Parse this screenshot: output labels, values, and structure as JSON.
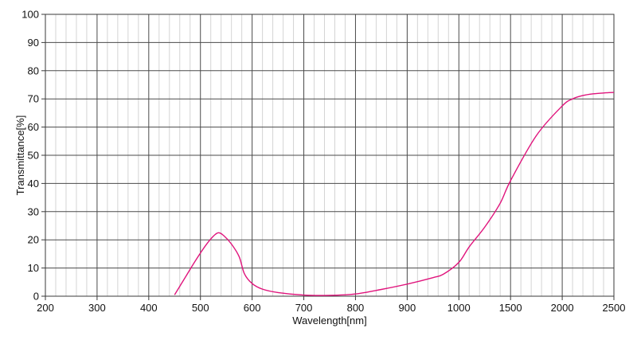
{
  "chart_data": {
    "type": "line",
    "title": "",
    "xlabel": "Wavelength[nm]",
    "ylabel": "Transmittance[%]",
    "ylim": [
      0,
      100
    ],
    "x_ticks": [
      "200",
      "300",
      "400",
      "500",
      "600",
      "700",
      "800",
      "900",
      "1000",
      "1500",
      "2000",
      "2500"
    ],
    "y_ticks": [
      "0",
      "10",
      "20",
      "30",
      "40",
      "50",
      "60",
      "70",
      "80",
      "90",
      "100"
    ],
    "x_scale_note": "piecewise axis: 100 nm per major division from 200 to 1000, 500 nm per major division from 1000 to 2500",
    "grid": true,
    "legend": "none",
    "series_color": "#e0147c",
    "series": [
      {
        "x": [
          450,
          470,
          490,
          510,
          525,
          535,
          545,
          560,
          575,
          585,
          600,
          620,
          650,
          700,
          750,
          800,
          850,
          900,
          950,
          970,
          1000,
          1100,
          1250,
          1400,
          1500,
          1750,
          2000,
          2100,
          2200,
          2300,
          2400,
          2500
        ],
        "y": [
          0.5,
          6.5,
          12.5,
          18,
          21.3,
          22.5,
          21.5,
          18.5,
          14,
          8,
          4.5,
          2.5,
          1.3,
          0.4,
          0.3,
          0.8,
          2.4,
          4.3,
          6.6,
          7.8,
          12,
          17.5,
          24.5,
          33,
          41,
          57,
          67.5,
          70,
          71.2,
          71.8,
          72.1,
          72.3
        ]
      }
    ]
  }
}
